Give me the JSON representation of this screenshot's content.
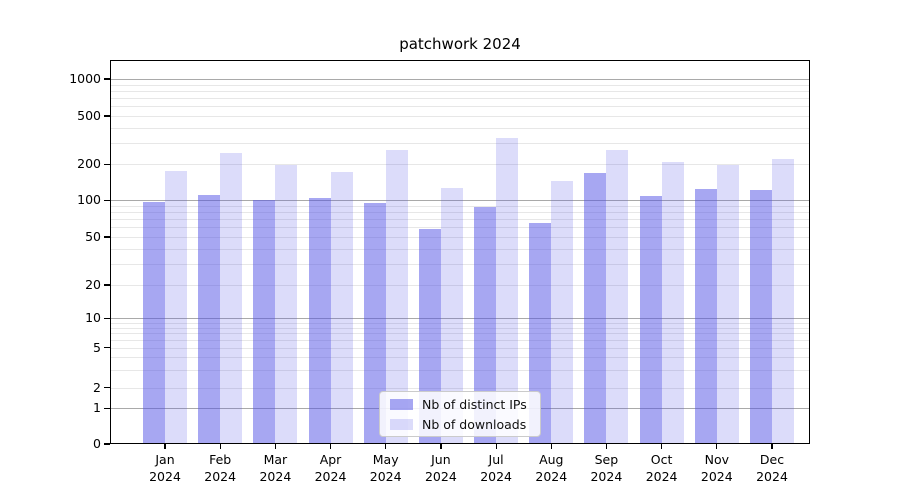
{
  "title": "patchwork 2024",
  "chart_data": {
    "type": "bar",
    "title": "patchwork 2024",
    "categories": [
      "Jan 2024",
      "Feb 2024",
      "Mar 2024",
      "Apr 2024",
      "May 2024",
      "Jun 2024",
      "Jul 2024",
      "Aug 2024",
      "Sep 2024",
      "Oct 2024",
      "Nov 2024",
      "Dec 2024"
    ],
    "series": [
      {
        "name": "Nb of distinct IPs",
        "color": "rgba(80,80,230,0.5)",
        "values": [
          97,
          110,
          100,
          104,
          96,
          58,
          88,
          65,
          170,
          108,
          124,
          121
        ]
      },
      {
        "name": "Nb of downloads",
        "color": "rgba(80,80,230,0.2)",
        "values": [
          175,
          248,
          198,
          172,
          262,
          127,
          330,
          145,
          262,
          209,
          199,
          221
        ]
      }
    ],
    "xlabel": "",
    "ylabel": "",
    "yaxis": {
      "scale": "symlog",
      "tick_values": [
        0,
        1,
        2,
        5,
        10,
        20,
        50,
        100,
        200,
        500,
        1000
      ],
      "tick_labels": [
        "0",
        "1",
        "2",
        "5",
        "10",
        "20",
        "50",
        "100",
        "200",
        "500",
        "1000"
      ],
      "ylim": [
        0,
        1430
      ]
    },
    "grid": true,
    "legend_position": "lower center"
  },
  "colors": {
    "bar_distinct_ips": "rgba(80,80,230,0.5)",
    "bar_downloads": "rgba(80,80,230,0.2)",
    "gridline_major": "#a9a9a9",
    "gridline_minor": "#e7e7e7",
    "axis": "#000000",
    "background": "#ffffff"
  }
}
